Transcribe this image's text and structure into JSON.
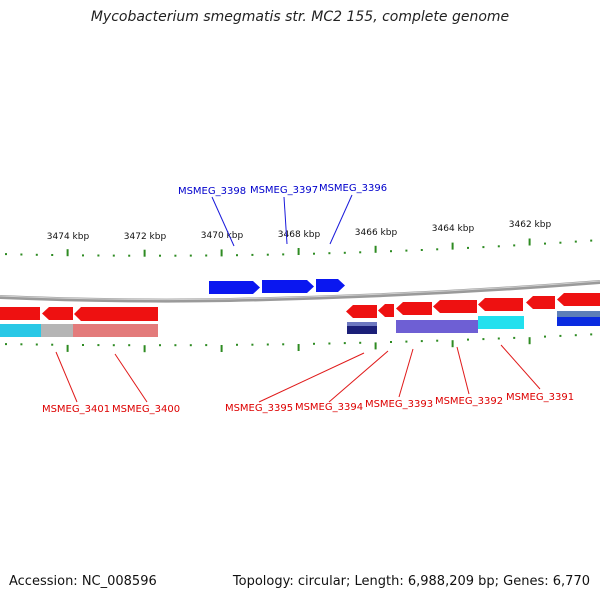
{
  "title": "Mycobacterium smegmatis str. MC2 155, complete genome",
  "footer": {
    "accession": "Accession: NC_008596",
    "summary": "Topology: circular; Length: 6,988,209 bp; Genes: 6,770"
  },
  "colors": {
    "backbone": "#808080",
    "ticks": "#2e8b22",
    "forward_gene": "#0000ff",
    "reverse_gene": "#ff0000",
    "forward_label": "#0000cc",
    "reverse_label": "#dd0000"
  },
  "kbp_labels": [
    "3474 kbp",
    "3472 kbp",
    "3470 kbp",
    "3468 kbp",
    "3466 kbp",
    "3464 kbp",
    "3462 kbp"
  ],
  "gene_labels_forward": [
    "MSMEG_3398",
    "MSMEG_3397",
    "MSMEG_3396"
  ],
  "gene_labels_reverse": [
    "MSMEG_3401",
    "MSMEG_3400",
    "MSMEG_3395",
    "MSMEG_3394",
    "MSMEG_3393",
    "MSMEG_3392",
    "MSMEG_3391"
  ]
}
